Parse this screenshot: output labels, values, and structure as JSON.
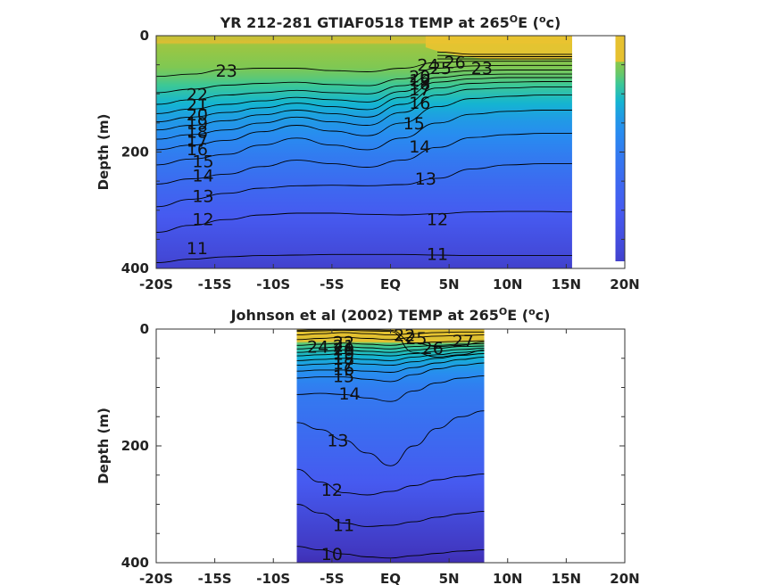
{
  "chart_data": [
    {
      "type": "contour",
      "title": "YR 212-281 GTIAF0518 TEMP at 265",
      "title_sup": "O",
      "title_tail": "E (",
      "title_sup2": "o",
      "title_end": "c)",
      "ylabel": "Depth (m)",
      "xlim": [
        -20,
        20
      ],
      "ylim": [
        0,
        400
      ],
      "x_ticks": [
        -20,
        -15,
        -10,
        -5,
        0,
        5,
        10,
        15,
        20
      ],
      "x_tick_labels": [
        "-20S",
        "-15S",
        "-10S",
        "-5S",
        "EQ",
        "5N",
        "10N",
        "15N",
        "20N"
      ],
      "y_ticks": [
        0,
        200,
        400
      ],
      "y_tick_labels": [
        "0",
        "200",
        "400"
      ],
      "data_x_range": [
        -20,
        15.5
      ],
      "strip_x_range": [
        19.2,
        20
      ],
      "color_range": [
        9,
        29
      ],
      "contours": [
        {
          "level": 11,
          "label": "11",
          "lx": -16.5,
          "ly": 365,
          "lx2": 4,
          "ly2": 375,
          "depth": [
            390,
            384,
            380,
            378,
            377,
            376,
            376,
            376,
            377,
            378,
            378,
            378,
            378
          ]
        },
        {
          "level": 12,
          "label": "12",
          "lx": -16,
          "ly": 315,
          "lx2": 4,
          "ly2": 315,
          "depth": [
            338,
            326,
            316,
            308,
            305,
            305,
            307,
            308,
            306,
            303,
            302,
            302,
            303
          ]
        },
        {
          "level": 13,
          "label": "13",
          "lx": -16,
          "ly": 275,
          "lx2": 3,
          "ly2": 245,
          "depth": [
            294,
            281,
            271,
            262,
            258,
            257,
            258,
            256,
            245,
            229,
            222,
            220,
            220
          ]
        },
        {
          "level": 14,
          "label": "14",
          "lx": -16,
          "ly": 240,
          "lx2": 2.5,
          "ly2": 190,
          "depth": [
            255,
            246,
            238,
            225,
            214,
            220,
            226,
            214,
            192,
            175,
            170,
            168,
            168
          ]
        },
        {
          "level": 15,
          "label": "15",
          "lx": -16,
          "ly": 215,
          "lx2": 2,
          "ly2": 150,
          "depth": [
            222,
            212,
            204,
            188,
            176,
            188,
            196,
            176,
            150,
            135,
            130,
            128,
            128
          ]
        },
        {
          "level": 16,
          "label": "16",
          "lx": -16.5,
          "ly": 195,
          "lx2": 2.5,
          "ly2": 115,
          "depth": [
            196,
            188,
            180,
            165,
            154,
            164,
            172,
            150,
            122,
            108,
            104,
            102,
            102
          ]
        },
        {
          "level": 17,
          "label": "17",
          "lx": -16.5,
          "ly": 180,
          "lx2": 2.5,
          "ly2": 92,
          "depth": [
            178,
            170,
            162,
            150,
            140,
            148,
            154,
            132,
            102,
            92,
            90,
            88,
            88
          ]
        },
        {
          "level": 18,
          "label": "18",
          "lx": -16.5,
          "ly": 165,
          "lx2": 2.5,
          "ly2": 82,
          "depth": [
            162,
            154,
            146,
            136,
            128,
            134,
            140,
            118,
            90,
            82,
            80,
            79,
            79
          ]
        },
        {
          "level": 19,
          "label": "19",
          "lx": -16.5,
          "ly": 150,
          "lx2": 2.5,
          "ly2": 76,
          "depth": [
            148,
            140,
            132,
            124,
            116,
            122,
            127,
            106,
            80,
            74,
            72,
            72,
            72
          ]
        },
        {
          "level": 20,
          "label": "20",
          "lx": -16.5,
          "ly": 135,
          "lx2": 2.5,
          "ly2": 70,
          "depth": [
            134,
            126,
            118,
            112,
            106,
            110,
            114,
            96,
            72,
            67,
            66,
            66,
            66
          ]
        },
        {
          "level": 21,
          "label": "21",
          "lx": -16.5,
          "ly": 118,
          "lx2": 0,
          "ly2": 0,
          "depth": [
            118,
            110,
            102,
            98,
            94,
            98,
            100,
            86,
            64,
            60,
            59,
            59,
            59
          ]
        },
        {
          "level": 22,
          "label": "22",
          "lx": -16.5,
          "ly": 100,
          "lx2": 0,
          "ly2": 0,
          "depth": [
            98,
            92,
            85,
            82,
            80,
            84,
            86,
            74,
            56,
            52,
            51,
            51,
            51
          ]
        },
        {
          "level": 23,
          "label": "23",
          "lx": -14,
          "ly": 60,
          "lx2": 7.8,
          "ly2": 55,
          "depth": [
            70,
            66,
            58,
            56,
            56,
            60,
            62,
            56,
            46,
            44,
            44,
            44,
            44
          ]
        },
        {
          "level": 24,
          "label": "24",
          "lx": 3.2,
          "ly": 50,
          "lx2": 0,
          "ly2": 0,
          "depth": [
            0,
            0,
            0,
            0,
            0,
            0,
            0,
            0,
            40,
            40,
            40,
            40,
            40
          ]
        },
        {
          "level": 25,
          "label": "25",
          "lx": 4.3,
          "ly": 55,
          "lx2": 0,
          "ly2": 0,
          "depth": [
            0,
            0,
            0,
            0,
            0,
            0,
            0,
            0,
            34,
            36,
            36,
            36,
            36
          ]
        },
        {
          "level": 26,
          "label": "26",
          "lx": 5.5,
          "ly": 45,
          "lx2": 0,
          "ly2": 0,
          "depth": [
            0,
            0,
            0,
            0,
            0,
            0,
            0,
            0,
            28,
            32,
            32,
            32,
            32
          ]
        }
      ],
      "contour_x": [
        -20,
        -17,
        -14,
        -11,
        -8,
        -5,
        -2,
        1,
        4,
        7,
        10,
        13,
        15.5
      ]
    },
    {
      "type": "contour",
      "title": "Johnson et al (2002) TEMP at 265",
      "title_sup": "O",
      "title_tail": "E (",
      "title_sup2": "o",
      "title_end": "c)",
      "ylabel": "Depth (m)",
      "xlim": [
        -20,
        20
      ],
      "ylim": [
        0,
        400
      ],
      "x_ticks": [
        -20,
        -15,
        -10,
        -5,
        0,
        5,
        10,
        15,
        20
      ],
      "x_tick_labels": [
        "-20S",
        "-15S",
        "-10S",
        "-5S",
        "EQ",
        "5N",
        "10N",
        "15N",
        "20N"
      ],
      "y_ticks": [
        0,
        200,
        400
      ],
      "y_tick_labels": [
        "0",
        "200",
        "400"
      ],
      "data_x_range": [
        -8,
        8
      ],
      "color_range": [
        9,
        29
      ],
      "contours": [
        {
          "level": 10,
          "label": "10",
          "lx": -5,
          "ly": 385,
          "lx2": 0,
          "ly2": 0,
          "depth": [
            372,
            378,
            385,
            390,
            392,
            388,
            384,
            380,
            378
          ]
        },
        {
          "level": 11,
          "label": "11",
          "lx": -4,
          "ly": 335,
          "lx2": 0,
          "ly2": 0,
          "depth": [
            300,
            315,
            332,
            338,
            336,
            330,
            322,
            316,
            312
          ]
        },
        {
          "level": 12,
          "label": "12",
          "lx": -5,
          "ly": 275,
          "lx2": 0,
          "ly2": 0,
          "depth": [
            240,
            262,
            280,
            284,
            278,
            268,
            258,
            252,
            248
          ]
        },
        {
          "level": 13,
          "label": "13",
          "lx": -4.5,
          "ly": 190,
          "lx2": 0,
          "ly2": 0,
          "depth": [
            160,
            172,
            190,
            212,
            234,
            200,
            170,
            150,
            140
          ]
        },
        {
          "level": 14,
          "label": "14",
          "lx": -3.5,
          "ly": 110,
          "lx2": 0,
          "ly2": 0,
          "depth": [
            112,
            110,
            112,
            118,
            124,
            106,
            92,
            84,
            80
          ]
        },
        {
          "level": 15,
          "label": "15",
          "lx": -4,
          "ly": 80,
          "lx2": 0,
          "ly2": 0,
          "depth": [
            84,
            82,
            82,
            86,
            90,
            78,
            68,
            62,
            58
          ]
        },
        {
          "level": 16,
          "label": "16",
          "lx": -4,
          "ly": 68,
          "lx2": 0,
          "ly2": 0,
          "depth": [
            72,
            70,
            70,
            72,
            74,
            66,
            58,
            52,
            48
          ]
        },
        {
          "level": 17,
          "label": "17",
          "lx": -4,
          "ly": 58,
          "lx2": 0,
          "ly2": 0,
          "depth": [
            62,
            60,
            58,
            60,
            62,
            56,
            50,
            45,
            42
          ]
        },
        {
          "level": 18,
          "label": "18",
          "lx": -4,
          "ly": 50,
          "lx2": 0,
          "ly2": 0,
          "depth": [
            54,
            52,
            50,
            52,
            54,
            48,
            44,
            40,
            37
          ]
        },
        {
          "level": 19,
          "label": "19",
          "lx": -4,
          "ly": 42,
          "lx2": 0,
          "ly2": 0,
          "depth": [
            46,
            44,
            42,
            44,
            46,
            42,
            38,
            35,
            33
          ]
        },
        {
          "level": 20,
          "label": "20",
          "lx": -4,
          "ly": 34,
          "lx2": 0,
          "ly2": 0,
          "depth": [
            40,
            38,
            36,
            38,
            40,
            36,
            33,
            30,
            29
          ]
        },
        {
          "level": 21,
          "label": "21",
          "lx": -4,
          "ly": 28,
          "lx2": 0,
          "ly2": 0,
          "depth": [
            34,
            32,
            30,
            32,
            34,
            30,
            28,
            26,
            25
          ]
        },
        {
          "level": 22,
          "label": "22",
          "lx": -4,
          "ly": 22,
          "lx2": 1.2,
          "ly2": 10,
          "depth": [
            28,
            26,
            24,
            26,
            28,
            24,
            22,
            21,
            20
          ]
        },
        {
          "level": 24,
          "label": "24",
          "lx": -6.2,
          "ly": 30,
          "lx2": 0,
          "ly2": 0,
          "depth": [
            18,
            16,
            14,
            16,
            18,
            14,
            12,
            11,
            10
          ]
        },
        {
          "level": 25,
          "label": "25",
          "lx": 2.2,
          "ly": 15,
          "lx2": 0,
          "ly2": 0,
          "depth": [
            10,
            8,
            6,
            8,
            10,
            8,
            6,
            5,
            5
          ]
        },
        {
          "level": 26,
          "label": "26",
          "lx": 3.6,
          "ly": 32,
          "lx2": 0,
          "ly2": 0,
          "depth": [
            4,
            3,
            2,
            3,
            4,
            40,
            48,
            44,
            36
          ]
        },
        {
          "level": 27,
          "label": "27",
          "lx": 6.2,
          "ly": 20,
          "lx2": 0,
          "ly2": 0,
          "depth": [
            2,
            1,
            1,
            1,
            2,
            24,
            30,
            28,
            22
          ]
        }
      ],
      "contour_x": [
        -8,
        -6,
        -4,
        -2,
        0,
        2,
        4,
        6,
        8
      ]
    }
  ]
}
